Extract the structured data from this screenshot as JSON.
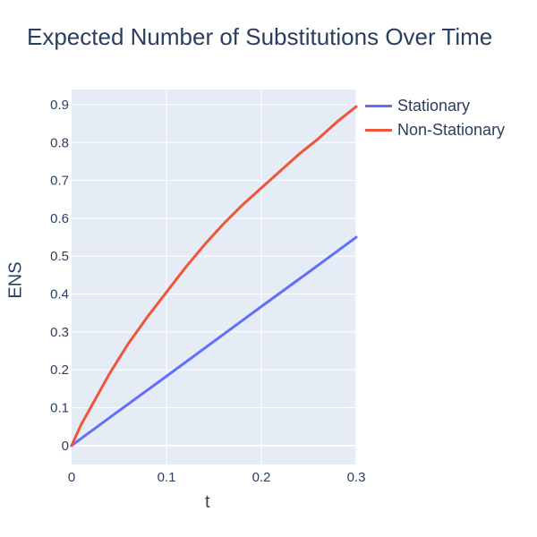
{
  "chart_data": {
    "type": "line",
    "title": "Expected Number of Substitutions Over Time",
    "xlabel": "t",
    "ylabel": "ENS",
    "xlim": [
      0,
      0.3
    ],
    "ylim": [
      -0.05,
      0.94
    ],
    "x_ticks": [
      "0",
      "0.1",
      "0.2",
      "0.3"
    ],
    "y_ticks": [
      "0",
      "0.1",
      "0.2",
      "0.3",
      "0.4",
      "0.5",
      "0.6",
      "0.7",
      "0.8",
      "0.9"
    ],
    "grid": true,
    "legend_position": "top-right outside",
    "background": "#e5ecf6",
    "series": [
      {
        "name": "Stationary",
        "color": "#636efa",
        "x": [
          0,
          0.05,
          0.1,
          0.15,
          0.2,
          0.25,
          0.3
        ],
        "y": [
          0,
          0.092,
          0.183,
          0.275,
          0.367,
          0.458,
          0.55
        ]
      },
      {
        "name": "Non-Stationary",
        "color": "#ef553b",
        "x": [
          0,
          0.01,
          0.02,
          0.04,
          0.06,
          0.08,
          0.1,
          0.12,
          0.14,
          0.16,
          0.18,
          0.2,
          0.22,
          0.24,
          0.26,
          0.28,
          0.3
        ],
        "y": [
          0,
          0.055,
          0.1,
          0.19,
          0.27,
          0.34,
          0.405,
          0.47,
          0.53,
          0.585,
          0.635,
          0.68,
          0.725,
          0.77,
          0.81,
          0.855,
          0.895
        ]
      }
    ]
  }
}
